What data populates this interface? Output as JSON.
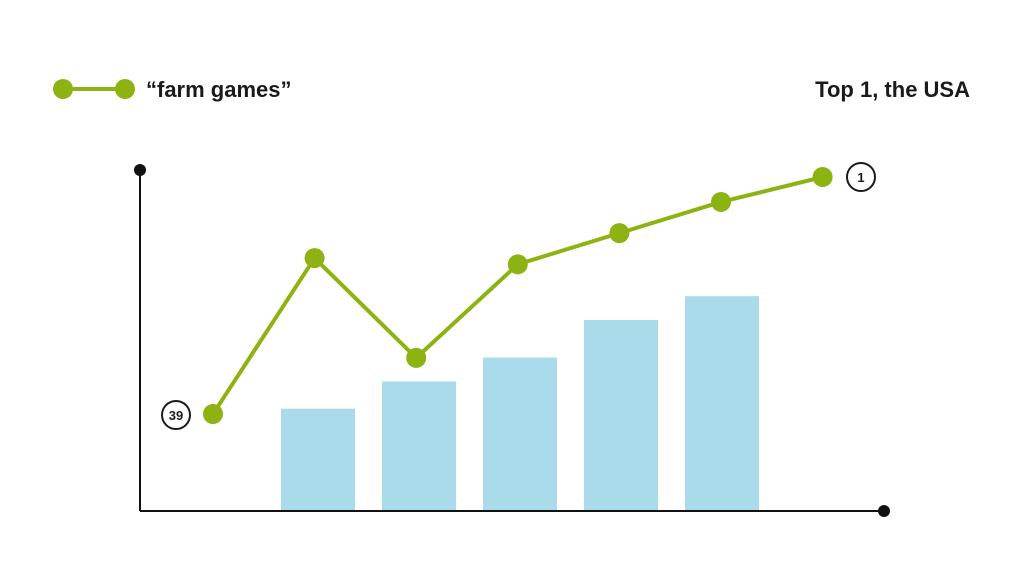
{
  "colors": {
    "line": "#8db312",
    "bar": "#a9dbea",
    "axis": "#111111",
    "text": "#1a1a1a"
  },
  "chart_data": {
    "type": "bar+line",
    "title": "Top 1, the USA",
    "grid": false,
    "legend_position": "top-left",
    "line_series": {
      "name": "“farm games”",
      "rank_values": [
        39,
        14,
        30,
        15,
        10,
        5,
        1
      ],
      "start_label": "39",
      "end_label": "1",
      "y_axis": "rank (inverted)",
      "ylim": [
        1,
        39
      ]
    },
    "bar_series": {
      "values": [
        30,
        38,
        45,
        56,
        63
      ],
      "ylim": [
        0,
        100
      ]
    }
  }
}
